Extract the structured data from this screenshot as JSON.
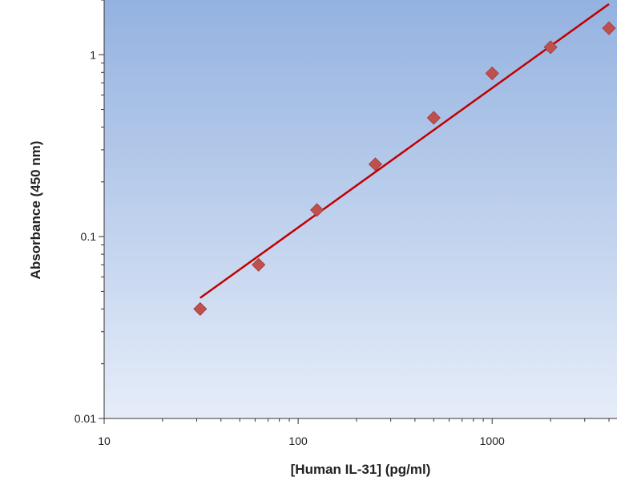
{
  "chart_data": {
    "type": "scatter",
    "xlabel": "[Human IL-31] (pg/ml)",
    "ylabel": "Absorbance (450 nm)",
    "x_scale": "log",
    "y_scale": "log",
    "xlim": [
      10,
      4000
    ],
    "ylim": [
      0.01,
      2
    ],
    "x_ticks": [
      10,
      100,
      1000
    ],
    "x_tick_labels": [
      "10",
      "100",
      "1000"
    ],
    "y_ticks": [
      0.01,
      0.1,
      1
    ],
    "y_tick_labels": [
      "0.01",
      "0.1",
      "1"
    ],
    "grid": false,
    "points": {
      "x": [
        31.25,
        62.5,
        125,
        250,
        500,
        1000,
        2000,
        4000
      ],
      "y": [
        0.04,
        0.07,
        0.14,
        0.25,
        0.45,
        0.79,
        1.1,
        1.4
      ]
    },
    "fit_line": {
      "x": [
        31.25,
        4000
      ],
      "y": [
        0.046,
        1.9
      ]
    },
    "colors": {
      "marker": "#c0504d",
      "fit_line": "#c00000",
      "plot_bg_top": "#94b2e0",
      "plot_bg_bottom": "#e6edf9"
    }
  }
}
